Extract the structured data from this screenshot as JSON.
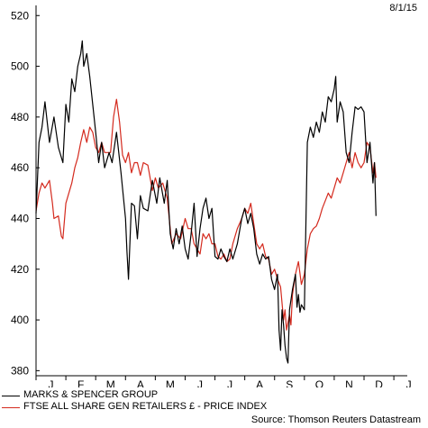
{
  "chart_data": {
    "type": "line",
    "date_label": "8/1/15",
    "y_ticks": [
      380,
      400,
      420,
      440,
      460,
      480,
      500,
      520
    ],
    "ylim": [
      378,
      524
    ],
    "x_months": [
      "J",
      "F",
      "M",
      "A",
      "M",
      "J",
      "J",
      "A",
      "S",
      "O",
      "N",
      "D",
      "J"
    ],
    "xlabel": "",
    "ylabel": "",
    "grid": false,
    "legend_position": "bottom-left",
    "series": [
      {
        "name": "MARKS & SPENCER GROUP",
        "color": "#000000",
        "points": [
          [
            0.0,
            442
          ],
          [
            0.1,
            470
          ],
          [
            0.2,
            476
          ],
          [
            0.3,
            486
          ],
          [
            0.45,
            470
          ],
          [
            0.6,
            480
          ],
          [
            0.75,
            468
          ],
          [
            0.9,
            462
          ],
          [
            1.0,
            485
          ],
          [
            1.1,
            478
          ],
          [
            1.2,
            495
          ],
          [
            1.3,
            490
          ],
          [
            1.4,
            500
          ],
          [
            1.5,
            505
          ],
          [
            1.55,
            510
          ],
          [
            1.6,
            500
          ],
          [
            1.7,
            505
          ],
          [
            1.8,
            496
          ],
          [
            1.9,
            485
          ],
          [
            2.0,
            474
          ],
          [
            2.1,
            462
          ],
          [
            2.2,
            470
          ],
          [
            2.3,
            460
          ],
          [
            2.45,
            466
          ],
          [
            2.55,
            462
          ],
          [
            2.7,
            474
          ],
          [
            2.85,
            458
          ],
          [
            3.0,
            440
          ],
          [
            3.05,
            427
          ],
          [
            3.1,
            416
          ],
          [
            3.2,
            446
          ],
          [
            3.3,
            445
          ],
          [
            3.4,
            432
          ],
          [
            3.5,
            449
          ],
          [
            3.6,
            444
          ],
          [
            3.75,
            443
          ],
          [
            3.9,
            455
          ],
          [
            4.05,
            446
          ],
          [
            4.15,
            456
          ],
          [
            4.3,
            446
          ],
          [
            4.4,
            455
          ],
          [
            4.5,
            434
          ],
          [
            4.6,
            428
          ],
          [
            4.7,
            436
          ],
          [
            4.8,
            430
          ],
          [
            4.9,
            437
          ],
          [
            5.0,
            428
          ],
          [
            5.1,
            424
          ],
          [
            5.2,
            434
          ],
          [
            5.3,
            446
          ],
          [
            5.4,
            425
          ],
          [
            5.5,
            436
          ],
          [
            5.6,
            444
          ],
          [
            5.7,
            448
          ],
          [
            5.8,
            440
          ],
          [
            5.9,
            444
          ],
          [
            6.0,
            425
          ],
          [
            6.1,
            424
          ],
          [
            6.2,
            428
          ],
          [
            6.3,
            425
          ],
          [
            6.4,
            423
          ],
          [
            6.5,
            428
          ],
          [
            6.6,
            424
          ],
          [
            6.75,
            430
          ],
          [
            6.9,
            440
          ],
          [
            7.0,
            444
          ],
          [
            7.1,
            438
          ],
          [
            7.2,
            442
          ],
          [
            7.3,
            436
          ],
          [
            7.4,
            426
          ],
          [
            7.5,
            422
          ],
          [
            7.6,
            426
          ],
          [
            7.7,
            424
          ],
          [
            7.8,
            425
          ],
          [
            7.9,
            416
          ],
          [
            8.0,
            412
          ],
          [
            8.1,
            418
          ],
          [
            8.15,
            396
          ],
          [
            8.2,
            388
          ],
          [
            8.25,
            404
          ],
          [
            8.3,
            398
          ],
          [
            8.35,
            390
          ],
          [
            8.4,
            385
          ],
          [
            8.45,
            383
          ],
          [
            8.5,
            404
          ],
          [
            8.6,
            412
          ],
          [
            8.7,
            418
          ],
          [
            8.75,
            405
          ],
          [
            8.8,
            410
          ],
          [
            8.85,
            403
          ],
          [
            8.9,
            406
          ],
          [
            9.0,
            404
          ],
          [
            9.1,
            470
          ],
          [
            9.2,
            476
          ],
          [
            9.3,
            472
          ],
          [
            9.4,
            478
          ],
          [
            9.5,
            474
          ],
          [
            9.6,
            482
          ],
          [
            9.7,
            478
          ],
          [
            9.8,
            488
          ],
          [
            9.9,
            486
          ],
          [
            10.0,
            491
          ],
          [
            10.05,
            496
          ],
          [
            10.1,
            478
          ],
          [
            10.2,
            486
          ],
          [
            10.3,
            482
          ],
          [
            10.4,
            466
          ],
          [
            10.5,
            462
          ],
          [
            10.6,
            474
          ],
          [
            10.7,
            484
          ],
          [
            10.8,
            483
          ],
          [
            10.9,
            484
          ],
          [
            11.0,
            482
          ],
          [
            11.1,
            462
          ],
          [
            11.2,
            470
          ],
          [
            11.3,
            454
          ],
          [
            11.35,
            462
          ],
          [
            11.4,
            441
          ]
        ]
      },
      {
        "name": "FTSE ALL SHARE GEN RETAILERS £ - PRICE INDEX",
        "color": "#d42a1e",
        "points": [
          [
            0.0,
            443
          ],
          [
            0.1,
            450
          ],
          [
            0.2,
            454
          ],
          [
            0.3,
            452
          ],
          [
            0.45,
            455
          ],
          [
            0.55,
            446
          ],
          [
            0.6,
            440
          ],
          [
            0.75,
            441
          ],
          [
            0.85,
            433
          ],
          [
            0.9,
            432
          ],
          [
            1.0,
            446
          ],
          [
            1.1,
            450
          ],
          [
            1.2,
            454
          ],
          [
            1.3,
            460
          ],
          [
            1.4,
            464
          ],
          [
            1.5,
            470
          ],
          [
            1.6,
            475
          ],
          [
            1.7,
            470
          ],
          [
            1.8,
            476
          ],
          [
            1.9,
            474
          ],
          [
            2.0,
            468
          ],
          [
            2.1,
            466
          ],
          [
            2.2,
            470
          ],
          [
            2.3,
            466
          ],
          [
            2.5,
            466
          ],
          [
            2.6,
            480
          ],
          [
            2.7,
            487
          ],
          [
            2.8,
            478
          ],
          [
            2.9,
            465
          ],
          [
            3.0,
            462
          ],
          [
            3.1,
            466
          ],
          [
            3.2,
            458
          ],
          [
            3.3,
            462
          ],
          [
            3.4,
            462
          ],
          [
            3.5,
            457
          ],
          [
            3.6,
            462
          ],
          [
            3.75,
            461
          ],
          [
            3.9,
            451
          ],
          [
            4.0,
            456
          ],
          [
            4.1,
            452
          ],
          [
            4.25,
            454
          ],
          [
            4.4,
            448
          ],
          [
            4.55,
            430
          ],
          [
            4.7,
            434
          ],
          [
            4.85,
            432
          ],
          [
            5.0,
            440
          ],
          [
            5.1,
            436
          ],
          [
            5.2,
            436
          ],
          [
            5.3,
            430
          ],
          [
            5.4,
            428
          ],
          [
            5.5,
            426
          ],
          [
            5.6,
            434
          ],
          [
            5.7,
            432
          ],
          [
            5.8,
            434
          ],
          [
            5.9,
            430
          ],
          [
            6.0,
            430
          ],
          [
            6.1,
            425
          ],
          [
            6.2,
            424
          ],
          [
            6.3,
            426
          ],
          [
            6.4,
            423
          ],
          [
            6.5,
            424
          ],
          [
            6.6,
            430
          ],
          [
            6.75,
            436
          ],
          [
            6.9,
            440
          ],
          [
            7.0,
            444
          ],
          [
            7.1,
            442
          ],
          [
            7.2,
            446
          ],
          [
            7.3,
            438
          ],
          [
            7.4,
            430
          ],
          [
            7.5,
            428
          ],
          [
            7.6,
            430
          ],
          [
            7.7,
            425
          ],
          [
            7.8,
            424
          ],
          [
            7.9,
            418
          ],
          [
            8.0,
            420
          ],
          [
            8.1,
            416
          ],
          [
            8.2,
            413
          ],
          [
            8.3,
            400
          ],
          [
            8.35,
            404
          ],
          [
            8.4,
            396
          ],
          [
            8.5,
            402
          ],
          [
            8.55,
            398
          ],
          [
            8.6,
            410
          ],
          [
            8.7,
            418
          ],
          [
            8.8,
            423
          ],
          [
            8.9,
            414
          ],
          [
            9.0,
            418
          ],
          [
            9.1,
            428
          ],
          [
            9.2,
            434
          ],
          [
            9.3,
            436
          ],
          [
            9.4,
            437
          ],
          [
            9.5,
            440
          ],
          [
            9.6,
            444
          ],
          [
            9.7,
            447
          ],
          [
            9.8,
            450
          ],
          [
            9.9,
            448
          ],
          [
            10.0,
            452
          ],
          [
            10.1,
            456
          ],
          [
            10.2,
            454
          ],
          [
            10.3,
            458
          ],
          [
            10.4,
            462
          ],
          [
            10.5,
            466
          ],
          [
            10.6,
            460
          ],
          [
            10.7,
            466
          ],
          [
            10.8,
            462
          ],
          [
            10.9,
            460
          ],
          [
            11.0,
            462
          ],
          [
            11.1,
            470
          ],
          [
            11.2,
            468
          ],
          [
            11.3,
            458
          ],
          [
            11.35,
            462
          ],
          [
            11.4,
            456
          ]
        ]
      }
    ]
  },
  "source_text": "Source: Thomson Reuters Datastream"
}
